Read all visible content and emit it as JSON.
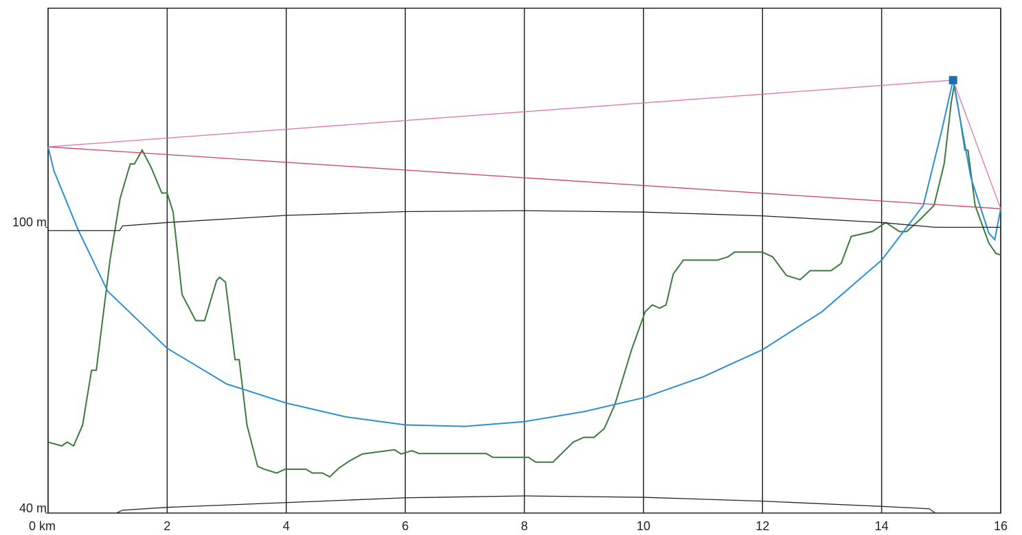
{
  "chart_data": {
    "type": "line",
    "xlim": [
      0,
      16
    ],
    "ylim": [
      40,
      146
    ],
    "xticks": [
      {
        "value": 0,
        "label": "0 km"
      },
      2,
      4,
      6,
      8,
      10,
      12,
      14,
      16
    ],
    "yticks": [
      {
        "value": 40,
        "label": "40 m"
      },
      {
        "value": 100,
        "label": "100 m"
      }
    ],
    "grid": true,
    "series": [
      {
        "color": "#3a7a3a",
        "x": [
          0,
          0.23,
          0.32,
          0.43,
          0.58,
          0.73,
          0.81,
          1.04,
          1.21,
          1.38,
          1.45,
          1.58,
          1.73,
          1.91,
          2.0,
          2.1,
          2.25,
          2.48,
          2.63,
          2.83,
          2.88,
          2.98,
          3.14,
          3.21,
          3.34,
          3.52,
          3.63,
          3.84,
          3.98,
          4.33,
          4.44,
          4.61,
          4.73,
          4.88,
          5.07,
          5.28,
          5.82,
          5.93,
          6.11,
          6.23,
          7.36,
          7.47,
          8.07,
          8.19,
          8.48,
          8.82,
          9.0,
          9.17,
          9.34,
          9.52,
          9.8,
          10.03,
          10.15,
          10.27,
          10.38,
          10.5,
          10.67,
          11.24,
          11.42,
          11.53,
          11.99,
          12.17,
          12.4,
          12.63,
          12.8,
          13.15,
          13.32,
          13.49,
          13.84,
          14.07,
          14.3,
          14.42,
          14.65,
          14.88,
          15.05,
          15.17,
          15.22,
          15.31,
          15.4,
          15.45,
          15.57,
          15.8,
          15.92,
          16
        ],
        "values": [
          54.9,
          54.1,
          54.9,
          54.1,
          58.5,
          70.0,
          70.0,
          93.1,
          106.1,
          113.3,
          113.3,
          116.2,
          112.6,
          107.2,
          107.2,
          103.2,
          85.9,
          80.4,
          80.4,
          88.8,
          89.5,
          88.5,
          72.2,
          72.2,
          58.5,
          49.8,
          49.2,
          48.4,
          49.2,
          49.2,
          48.4,
          48.4,
          47.6,
          49.4,
          51.0,
          52.4,
          53.3,
          52.4,
          53.1,
          52.5,
          52.5,
          51.7,
          51.7,
          50.7,
          50.7,
          54.9,
          55.9,
          55.9,
          57.7,
          62.8,
          74.3,
          82.3,
          83.7,
          83.0,
          83.7,
          90.2,
          93.1,
          93.1,
          93.8,
          94.8,
          94.8,
          93.8,
          89.9,
          89.0,
          90.9,
          90.9,
          92.4,
          98.1,
          99.1,
          101.0,
          99.1,
          99.1,
          101.7,
          104.6,
          113.3,
          126.3,
          129.9,
          123.4,
          116.2,
          116.2,
          104.6,
          96.7,
          94.5,
          94.2
        ]
      },
      {
        "color": "#2a8fd0",
        "x": [
          0,
          0.1,
          0.5,
          1,
          2,
          3,
          4,
          5,
          6,
          7,
          8,
          9,
          10,
          11,
          12,
          13,
          14,
          14.7,
          15.0,
          15.2,
          15.5,
          15.8,
          15.9,
          16
        ],
        "values": [
          116.9,
          111.8,
          99.6,
          86.6,
          74.6,
          67.1,
          63.1,
          60.2,
          58.5,
          58.2,
          59.2,
          61.3,
          64.2,
          68.6,
          74.3,
          82.3,
          93.1,
          104.6,
          119.8,
          130.9,
          110.4,
          98.8,
          97.4,
          103.9
        ]
      },
      {
        "color": "#d04060",
        "x": [
          0,
          16
        ],
        "values": [
          116.9,
          103.9
        ]
      },
      {
        "color": "#e070b0",
        "x": [
          0,
          15.2,
          16
        ],
        "values": [
          116.9,
          130.9,
          103.9
        ]
      },
      {
        "color": "#222222",
        "x": [
          0,
          1.2,
          1.25,
          2,
          4,
          6,
          8,
          10,
          12,
          14,
          14.9,
          16
        ],
        "values": [
          99.3,
          99.3,
          100.3,
          101.0,
          102.5,
          103.3,
          103.5,
          103.2,
          102.4,
          101.0,
          100.0,
          100.0
        ]
      },
      {
        "color": "#222222",
        "x": [
          1.15,
          1.25,
          2,
          4,
          6,
          8,
          10,
          12,
          14,
          14.8,
          14.9
        ],
        "values": [
          40,
          40.6,
          41.2,
          42.2,
          43.2,
          43.6,
          43.3,
          42.5,
          41.4,
          40.9,
          40
        ]
      }
    ],
    "marker": {
      "x": 15.2,
      "y": 130.9,
      "color": "#1a6fb0"
    }
  }
}
